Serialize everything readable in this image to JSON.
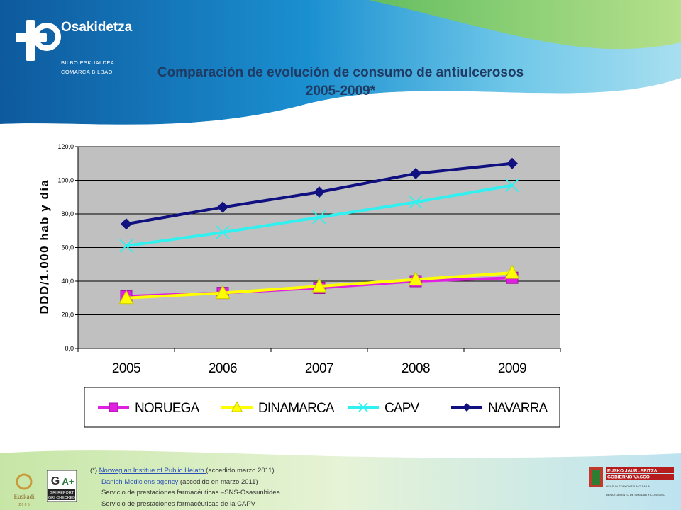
{
  "brand": {
    "name": "Osakidetza",
    "sub1": "BILBO ESKUALDEA",
    "sub2": "COMARCA BILBAO"
  },
  "title": {
    "line1": "Comparación de evolución de consumo de antiulcerosos",
    "line2": "2005-2009*"
  },
  "chart_data": {
    "type": "line",
    "ylabel": "DDD/1.000 hab y día",
    "xlabel": "",
    "categories": [
      "2005",
      "2006",
      "2007",
      "2008",
      "2009"
    ],
    "ylim": [
      0,
      120
    ],
    "yticks": [
      "0,0",
      "20,0",
      "40,0",
      "60,0",
      "80,0",
      "100,0",
      "120,0"
    ],
    "grid": true,
    "legend_position": "bottom",
    "series": [
      {
        "name": "NORUEGA",
        "values": [
          31,
          33,
          36,
          40,
          42
        ],
        "color": "#e020e0",
        "marker": "square"
      },
      {
        "name": "DINAMARCA",
        "values": [
          30,
          33,
          37,
          41,
          45
        ],
        "color": "#ffff00",
        "marker": "triangle"
      },
      {
        "name": "CAPV",
        "values": [
          61,
          69,
          78,
          87,
          97
        ],
        "color": "#30f0f0",
        "marker": "x"
      },
      {
        "name": "NAVARRA",
        "values": [
          74,
          84,
          93,
          104,
          110
        ],
        "color": "#101080",
        "marker": "diamond"
      }
    ]
  },
  "footer": {
    "line1_prefix": "(*) ",
    "line1_link": "Norwegian Institue of Public Helath ",
    "line1_suffix": " (accedido marzo 2011)",
    "line2_link": "Danish Mediciens agency ",
    "line2_suffix": "(accedido en marzo 2011)",
    "line3": "Servicio de prestaciones farmacéuticas –SNS-Osasunbidea",
    "line4": "Servicio de prestaciones farmacéuticas de la CAPV"
  },
  "logos": {
    "euskadi": "Euskadi",
    "euskadi_year": "2 0 0 5",
    "gri1": "GRI REPORT",
    "gri2": "GRI CHECKED",
    "gv1": "EUSKO JAURLARITZA",
    "gv2": "GOBIERNO VASCO",
    "gv3": "OSASUN ETA KONTSUMO SAILA",
    "gv4": "DEPARTAMENTO DE SANIDAD Y CONSUMO"
  }
}
